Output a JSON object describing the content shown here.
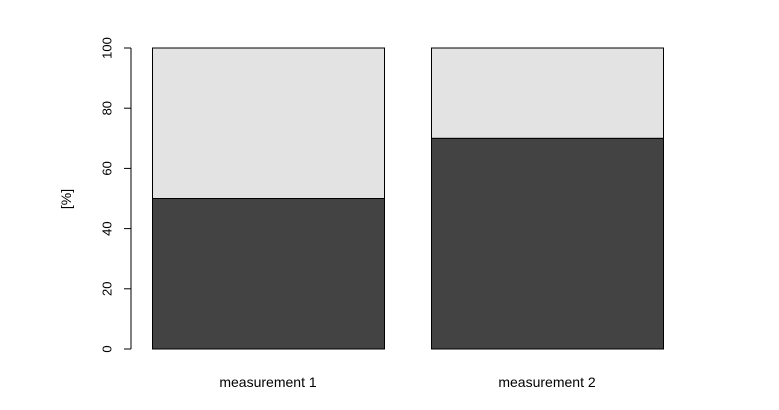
{
  "chart_data": {
    "type": "bar",
    "stacked": true,
    "categories": [
      "measurement 1",
      "measurement 2"
    ],
    "series": [
      {
        "values": [
          50,
          70
        ],
        "color": "#434343"
      },
      {
        "values": [
          50,
          30
        ],
        "color": "#e3e3e3"
      }
    ],
    "title": "",
    "xlabel": "",
    "ylabel": "[%]",
    "ylim": [
      0,
      100
    ],
    "yticks": [
      "0",
      "20",
      "40",
      "60",
      "80",
      "100"
    ],
    "grid": false,
    "legend": "none"
  }
}
